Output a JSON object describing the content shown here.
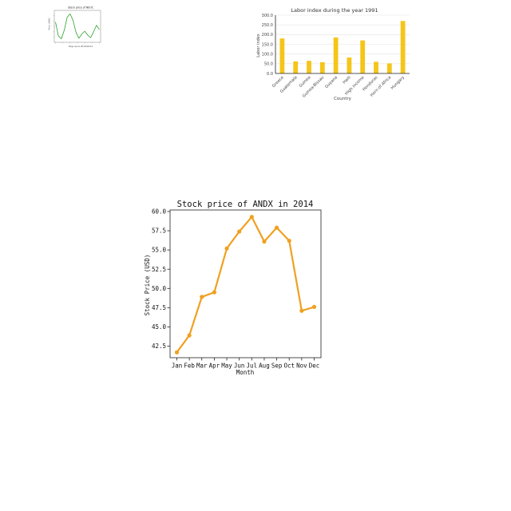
{
  "chart_data": [
    {
      "type": "line",
      "title": "Stock price of NEOC",
      "xlabel": "Days since 2019-06-01",
      "ylabel": "Price (USD)",
      "x": [
        0,
        2,
        4,
        6,
        8,
        10,
        12,
        14,
        16,
        18,
        20,
        22,
        24,
        26,
        28,
        30
      ],
      "values": [
        7.8,
        5.2,
        4.7,
        6.3,
        8.7,
        9.3,
        8.1,
        5.9,
        4.8,
        5.6,
        6.1,
        5.4,
        4.9,
        6.0,
        7.2,
        6.4
      ],
      "series_color": "#2ca02c",
      "grid": false
    },
    {
      "type": "bar",
      "title": "Labor index during the year 1991",
      "xlabel": "Country",
      "ylabel": "Labor index",
      "categories": [
        "Greece",
        "Guatemala",
        "Guinea",
        "Guinea-Bissau",
        "Guyana",
        "Haiti",
        "High income",
        "Honduras",
        "Horn of Africa",
        "Hungary"
      ],
      "values": [
        180,
        62,
        65,
        58,
        185,
        82,
        170,
        60,
        52,
        270
      ],
      "yticks": [
        "0.0",
        "50.0",
        "100.0",
        "150.0",
        "200.0",
        "250.0",
        "300.0"
      ],
      "ylim": [
        0,
        300
      ],
      "bar_color": "#f5c518",
      "grid": true
    },
    {
      "type": "line",
      "title": "Stock price of ANDX in 2014",
      "xlabel": "Month",
      "ylabel": "Stock Price (USD)",
      "categories": [
        "Jan",
        "Feb",
        "Mar",
        "Apr",
        "May",
        "Jun",
        "Jul",
        "Aug",
        "Sep",
        "Oct",
        "Nov",
        "Dec"
      ],
      "values": [
        41.7,
        43.9,
        48.9,
        49.5,
        55.2,
        57.4,
        59.3,
        56.1,
        57.9,
        56.2,
        47.1,
        47.6
      ],
      "yticks": [
        "42.5",
        "45.0",
        "47.5",
        "50.0",
        "52.5",
        "55.0",
        "57.5",
        "60.0"
      ],
      "ylim": [
        41.0,
        60.2
      ],
      "series_color": "#f0a020",
      "grid": false
    }
  ]
}
